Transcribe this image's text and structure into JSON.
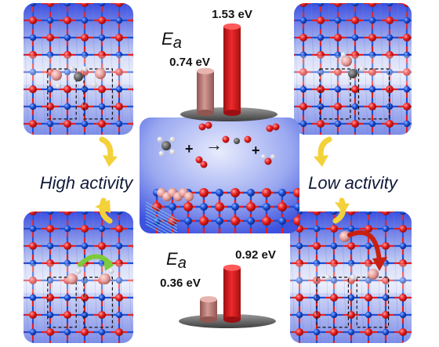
{
  "top_chart": {
    "symbol": "E",
    "subscript": "a",
    "bars": [
      {
        "value": 0.74,
        "label": "0.74 eV"
      },
      {
        "value": 1.53,
        "label": "1.53 eV"
      }
    ]
  },
  "bottom_chart": {
    "symbol": "E",
    "subscript": "a",
    "bars": [
      {
        "value": 0.36,
        "label": "0.36 eV"
      },
      {
        "value": 0.92,
        "label": "0.92 eV"
      }
    ]
  },
  "labels": {
    "left": "High activity",
    "right": "Low activity"
  },
  "reaction": {
    "plus1": "+",
    "plus2": "+",
    "arrow": "→"
  },
  "colors": {
    "bar_light": "#c98b86",
    "bar_strong": "#e0191f",
    "oxygen": "#e61e1e",
    "metal": "#1a4fd6",
    "hydrogen": "#ffffff",
    "platinum": "#e9a3a0",
    "arrow_yellow": "#f3d13a",
    "arrow_green": "#7ccb3a",
    "arrow_red": "#c82010",
    "panel_bg": "#c5ccf0"
  }
}
